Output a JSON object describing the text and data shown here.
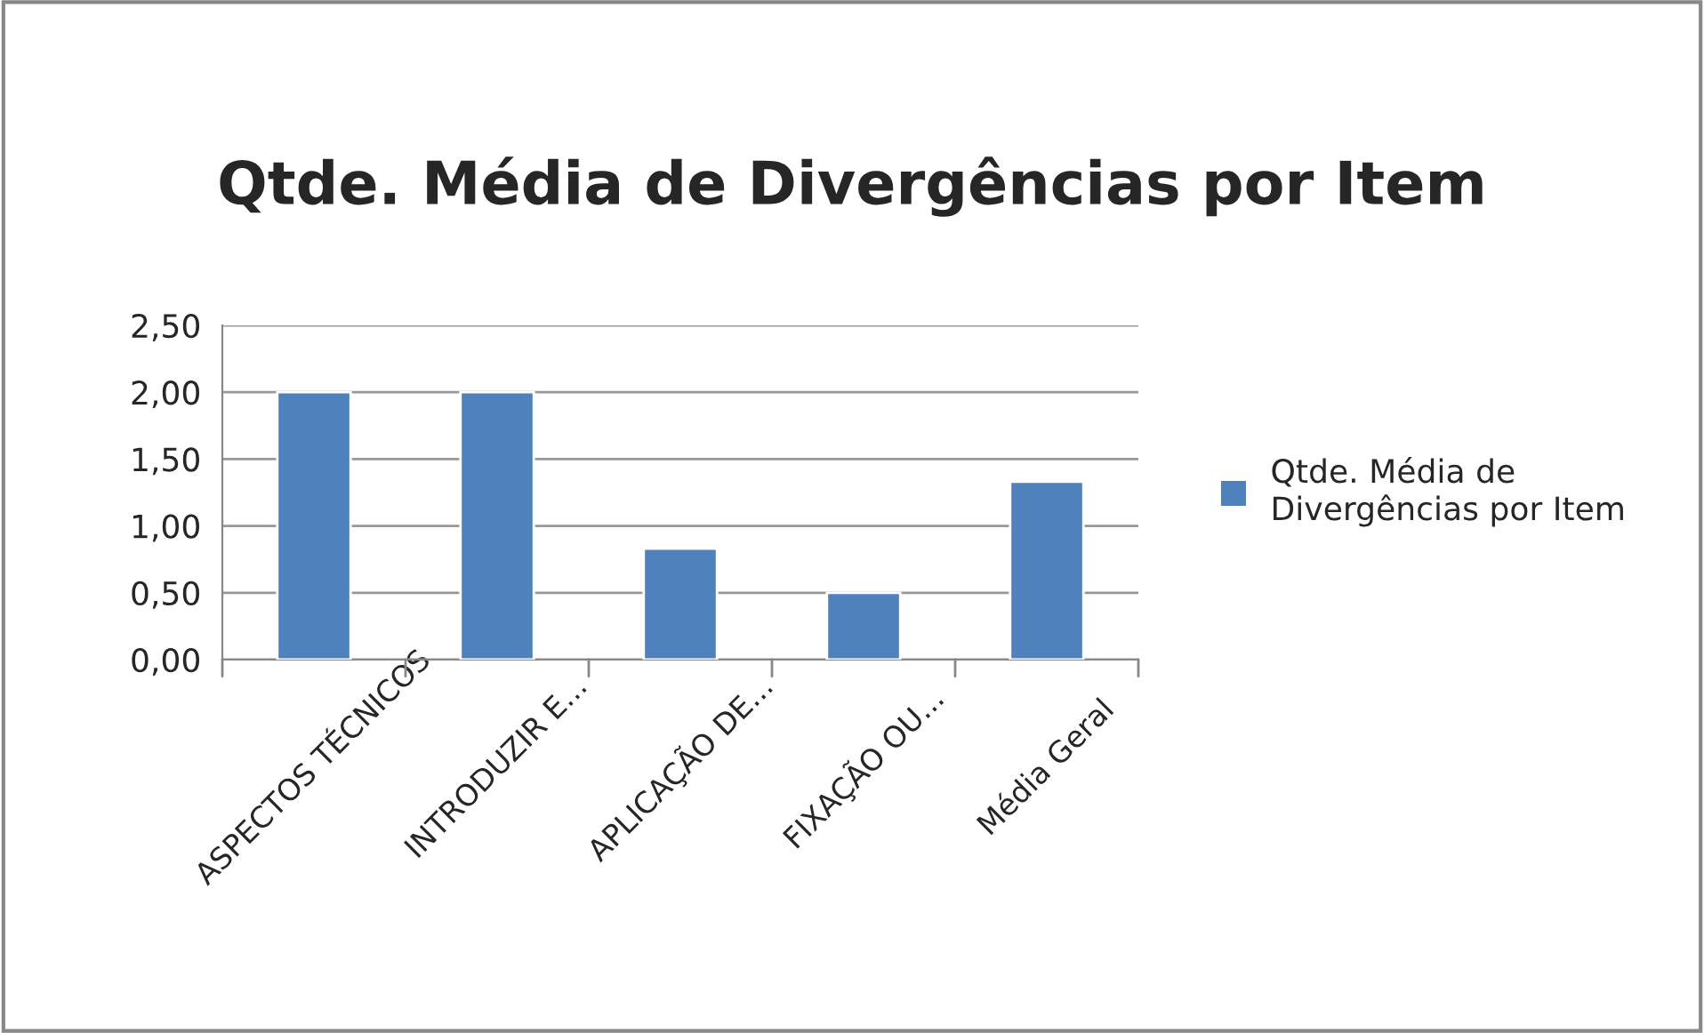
{
  "chart_data": {
    "type": "bar",
    "title": "Qtde. Média de Divergências por Item",
    "categories": [
      "ASPECTOS TÉCNICOS",
      "INTRODUZIR E...",
      "APLICAÇÃO DE...",
      "FIXAÇÃO OU...",
      "Média Geral"
    ],
    "series": [
      {
        "name": "Qtde. Média de Divergências por Item",
        "color": "#4f81bd",
        "values": [
          2.0,
          2.0,
          0.83,
          0.5,
          1.33
        ]
      }
    ],
    "ylim": [
      0,
      2.5
    ],
    "yticks": [
      {
        "value": 0,
        "label": "0,00"
      },
      {
        "value": 0.5,
        "label": "0,50"
      },
      {
        "value": 1.0,
        "label": "1,00"
      },
      {
        "value": 1.5,
        "label": "1,50"
      },
      {
        "value": 2.0,
        "label": "2,00"
      },
      {
        "value": 2.5,
        "label": "2,50"
      }
    ],
    "grid": "y",
    "legend": "right"
  }
}
